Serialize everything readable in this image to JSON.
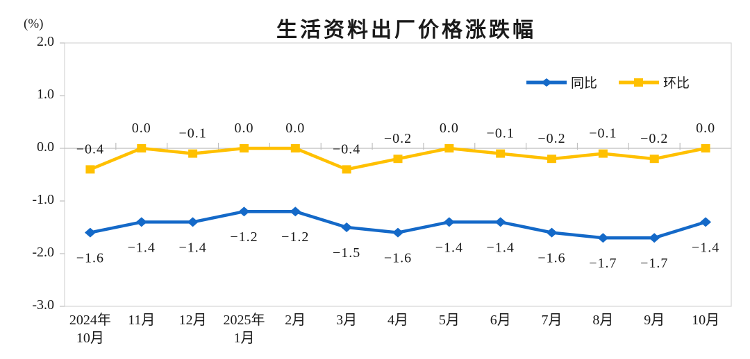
{
  "chart_data": {
    "type": "line",
    "title": "生活资料出厂价格涨跌幅",
    "unit": "(%)",
    "categories": [
      "2024年\n10月",
      "11月",
      "12月",
      "2025年\n1月",
      "2月",
      "3月",
      "4月",
      "5月",
      "6月",
      "7月",
      "8月",
      "9月",
      "10月"
    ],
    "series": [
      {
        "name": "同比",
        "color": "#1469C8",
        "marker": "diamond",
        "label_position": "below",
        "values": [
          -1.6,
          -1.4,
          -1.4,
          -1.2,
          -1.2,
          -1.5,
          -1.6,
          -1.4,
          -1.4,
          -1.6,
          -1.7,
          -1.7,
          -1.4
        ]
      },
      {
        "name": "环比",
        "color": "#FFC000",
        "marker": "square",
        "label_position": "above",
        "values": [
          -0.4,
          0.0,
          -0.1,
          0.0,
          0.0,
          -0.4,
          -0.2,
          0.0,
          -0.1,
          -0.2,
          -0.1,
          -0.2,
          0.0
        ]
      }
    ],
    "y_axis": {
      "ticks": [
        "2.0",
        "1.0",
        "0.0",
        "-1.0",
        "-2.0",
        "-3.0"
      ],
      "max": 2.0,
      "min": -3.0
    },
    "grid": "zero-line-only",
    "legend_position": "top-right-inside",
    "axis_color": "#bfbfbf",
    "border_color": "#d6d6d6",
    "text_color": "#1a1a1a"
  }
}
